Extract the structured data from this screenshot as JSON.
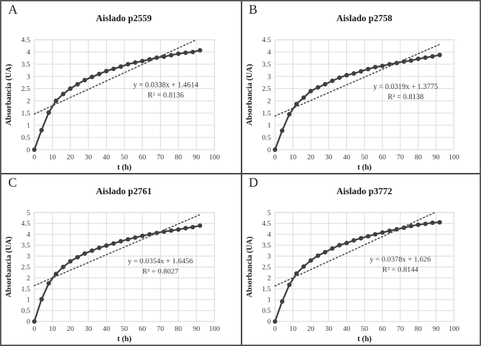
{
  "figure": {
    "description_colors": {
      "series": "#3f3f3f",
      "trendline": "#4d4d4d",
      "gridline": "#d9d9d9",
      "tick_text": "#3b3b3b",
      "title_text": "#1a1a1a",
      "divider": "#3f3f3f",
      "outer_border": "#595959"
    }
  },
  "chart_data": [
    {
      "type": "line",
      "panel_label": "A",
      "title": "Aislado p2559",
      "xlabel": "t (h)",
      "ylabel": "Absorbancia (UA)",
      "xlim": [
        0,
        100
      ],
      "xtick_step": 10,
      "ylim": [
        0,
        4.5
      ],
      "ytick_step": 0.5,
      "grid": true,
      "legend": "none",
      "x": [
        0,
        4,
        8,
        12,
        16,
        20,
        24,
        28,
        32,
        36,
        40,
        44,
        48,
        52,
        56,
        60,
        64,
        68,
        72,
        76,
        80,
        84,
        88,
        92
      ],
      "y": [
        0,
        0.8,
        1.52,
        2.0,
        2.28,
        2.5,
        2.68,
        2.85,
        2.98,
        3.1,
        3.22,
        3.31,
        3.4,
        3.5,
        3.57,
        3.63,
        3.7,
        3.77,
        3.81,
        3.87,
        3.93,
        3.97,
        4.0,
        4.07
      ],
      "trendline": {
        "type": "linear",
        "slope": 0.0338,
        "intercept": 1.4614,
        "r_squared": 0.8136,
        "x_range": [
          0,
          92
        ],
        "label_line1": "y = 0.0338x + 1.4614",
        "label_line2": "R² = 0.8136"
      },
      "annotation_anchor": {
        "x": 73,
        "y": 2.45
      }
    },
    {
      "type": "line",
      "panel_label": "B",
      "title": "Aislado p2758",
      "xlabel": "t (h)",
      "ylabel": "Absorbancia (UA)",
      "xlim": [
        0,
        100
      ],
      "xtick_step": 10,
      "ylim": [
        0,
        4.5
      ],
      "ytick_step": 0.5,
      "grid": true,
      "legend": "none",
      "x": [
        0,
        4,
        8,
        12,
        16,
        20,
        24,
        28,
        32,
        36,
        40,
        44,
        48,
        52,
        56,
        60,
        64,
        68,
        72,
        76,
        80,
        84,
        88,
        92
      ],
      "y": [
        0,
        0.78,
        1.45,
        1.87,
        2.13,
        2.4,
        2.55,
        2.68,
        2.82,
        2.95,
        3.05,
        3.12,
        3.21,
        3.3,
        3.38,
        3.43,
        3.5,
        3.55,
        3.61,
        3.65,
        3.72,
        3.77,
        3.82,
        3.88
      ],
      "trendline": {
        "type": "linear",
        "slope": 0.0319,
        "intercept": 1.3775,
        "r_squared": 0.8138,
        "x_range": [
          0,
          92
        ],
        "label_line1": "y = 0.0319x + 1.3775",
        "label_line2": "R² = 0.8138"
      },
      "annotation_anchor": {
        "x": 73,
        "y": 2.38
      }
    },
    {
      "type": "line",
      "panel_label": "C",
      "title": "Aislado p2761",
      "xlabel": "t (h)",
      "ylabel": "Absorbancia (UA)",
      "xlim": [
        0,
        100
      ],
      "xtick_step": 10,
      "ylim": [
        0,
        5
      ],
      "ytick_step": 0.5,
      "grid": true,
      "legend": "none",
      "x": [
        0,
        4,
        8,
        12,
        16,
        20,
        24,
        28,
        32,
        36,
        40,
        44,
        48,
        52,
        56,
        60,
        64,
        68,
        72,
        76,
        80,
        84,
        88,
        92
      ],
      "y": [
        0,
        1.02,
        1.75,
        2.18,
        2.5,
        2.76,
        2.95,
        3.12,
        3.25,
        3.38,
        3.48,
        3.58,
        3.68,
        3.77,
        3.85,
        3.93,
        4.0,
        4.06,
        4.12,
        4.17,
        4.22,
        4.28,
        4.33,
        4.4
      ],
      "trendline": {
        "type": "linear",
        "slope": 0.0354,
        "intercept": 1.6456,
        "r_squared": 0.8027,
        "x_range": [
          0,
          92
        ],
        "label_line1": "y = 0.0354x + 1.6456",
        "label_line2": "R² = 0.8027"
      },
      "annotation_anchor": {
        "x": 70,
        "y": 2.55
      }
    },
    {
      "type": "line",
      "panel_label": "D",
      "title": "Aislado p3772",
      "xlabel": "t (h)",
      "ylabel": "Absorbancia (UA)",
      "xlim": [
        0,
        100
      ],
      "xtick_step": 10,
      "ylim": [
        0,
        5
      ],
      "ytick_step": 0.5,
      "grid": true,
      "legend": "none",
      "x": [
        0,
        4,
        8,
        12,
        16,
        20,
        24,
        28,
        32,
        36,
        40,
        44,
        48,
        52,
        56,
        60,
        64,
        68,
        72,
        76,
        80,
        84,
        88,
        92
      ],
      "y": [
        0,
        0.92,
        1.68,
        2.2,
        2.52,
        2.8,
        3.02,
        3.18,
        3.35,
        3.5,
        3.6,
        3.72,
        3.82,
        3.91,
        4.0,
        4.08,
        4.16,
        4.23,
        4.3,
        4.38,
        4.44,
        4.48,
        4.53,
        4.55
      ],
      "trendline": {
        "type": "linear",
        "slope": 0.0378,
        "intercept": 1.626,
        "r_squared": 0.8144,
        "x_range": [
          0,
          92
        ],
        "label_line1": "y = 0.0378x + 1.626",
        "label_line2": "R² = 0.8144"
      },
      "annotation_anchor": {
        "x": 70,
        "y": 2.62
      }
    }
  ]
}
